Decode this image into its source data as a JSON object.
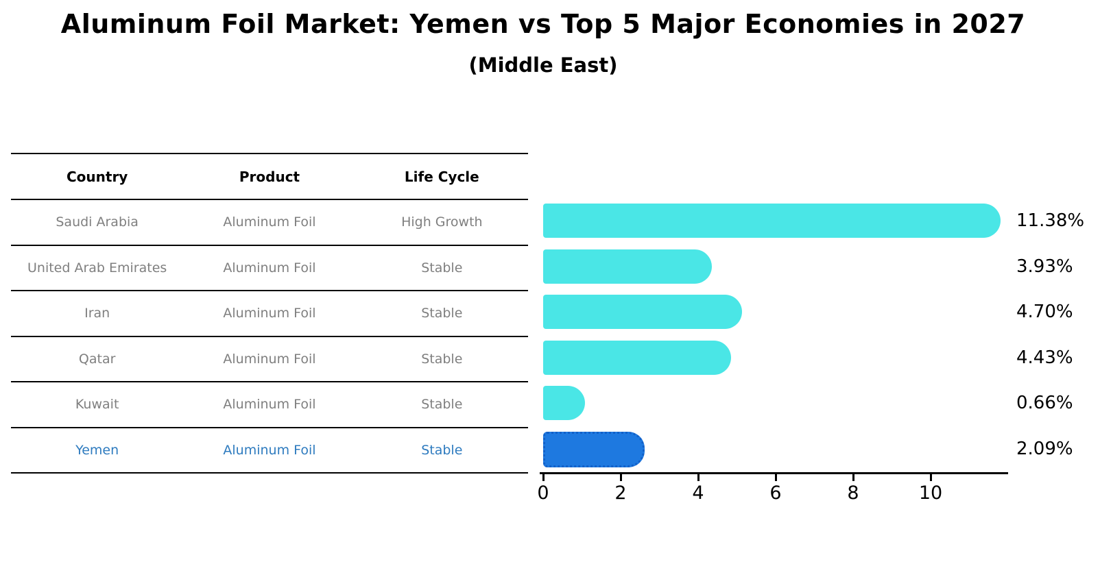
{
  "title": "Aluminum Foil Market: Yemen vs Top 5 Major Economies in 2027",
  "subtitle": "(Middle East)",
  "table": {
    "headers": [
      "Country",
      "Product",
      "Life Cycle"
    ],
    "rows": [
      {
        "country": "Saudi Arabia",
        "product": "Aluminum Foil",
        "life_cycle": "High Growth"
      },
      {
        "country": "United Arab Emirates",
        "product": "Aluminum Foil",
        "life_cycle": "Stable"
      },
      {
        "country": "Iran",
        "product": "Aluminum Foil",
        "life_cycle": "Stable"
      },
      {
        "country": "Qatar",
        "product": "Aluminum Foil",
        "life_cycle": "Stable"
      },
      {
        "country": "Kuwait",
        "product": "Aluminum Foil",
        "life_cycle": "Stable"
      },
      {
        "country": "Yemen",
        "product": "Aluminum Foil",
        "life_cycle": "Stable"
      }
    ],
    "highlight_row": "Yemen"
  },
  "chart_data": {
    "type": "bar",
    "orientation": "horizontal",
    "title": "Aluminum Foil Market: Yemen vs Top 5 Major Economies in 2027",
    "subtitle": "(Middle East)",
    "categories": [
      "Saudi Arabia",
      "United Arab Emirates",
      "Iran",
      "Qatar",
      "Kuwait",
      "Yemen"
    ],
    "values": [
      11.38,
      3.93,
      4.7,
      4.43,
      0.66,
      2.09
    ],
    "value_labels": [
      "11.38%",
      "3.93%",
      "4.70%",
      "4.43%",
      "0.66%",
      "2.09%"
    ],
    "xticks": [
      0,
      2,
      4,
      6,
      8,
      10
    ],
    "xlim": [
      0,
      12
    ],
    "grid": false,
    "legend": false,
    "bar_color": "#4AE6E6",
    "highlight_bar_color": "#1E79E0",
    "highlight_bar_border_color": "#1260C8",
    "highlight_border_style": "dotted",
    "highlight_index": 5
  },
  "colors": {
    "background": "#FFFFFF",
    "title_text": "#000000",
    "table_header_text": "#000000",
    "table_text": "#7F7F7F",
    "highlight_text": "#2E7BBF",
    "axis": "#000000",
    "value_label_text": "#000000"
  }
}
